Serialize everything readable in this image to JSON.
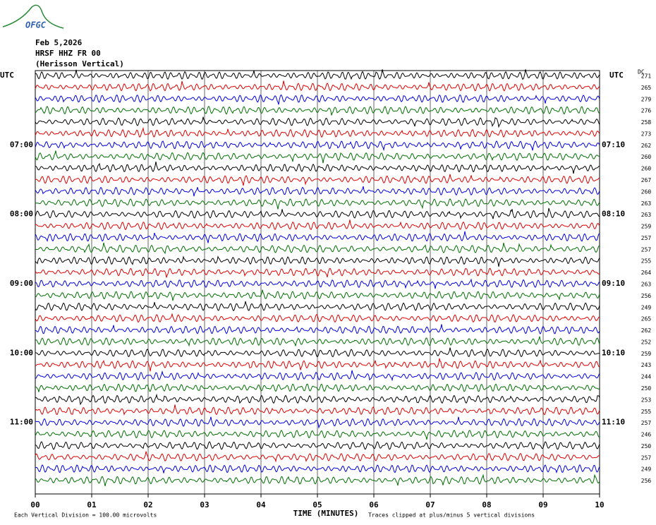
{
  "chart_data": {
    "type": "helicorder",
    "logo": "OFGC",
    "header": [
      "Feb 5,2026",
      "HRSF HHZ FR 00",
      "(Herisson Vertical)"
    ],
    "left_unit": "UTC",
    "right_unit": "UTC",
    "dc_label": "DC",
    "xlabel": "TIME (MINUTES)",
    "xlim": [
      0,
      10
    ],
    "xticks": [
      {
        "value": 0,
        "label": "00"
      },
      {
        "value": 1,
        "label": "01"
      },
      {
        "value": 2,
        "label": "02"
      },
      {
        "value": 3,
        "label": "03"
      },
      {
        "value": 4,
        "label": "04"
      },
      {
        "value": 5,
        "label": "05"
      },
      {
        "value": 6,
        "label": "06"
      },
      {
        "value": 7,
        "label": "07"
      },
      {
        "value": 8,
        "label": "08"
      },
      {
        "value": 9,
        "label": "09"
      },
      {
        "value": 10,
        "label": "10"
      }
    ],
    "footer_left": "Each Vertical Division =  100.00 microvolts",
    "footer_right": "Traces clipped at plus/minus 5 vertical divisions",
    "trace_colors": [
      "#000000",
      "#e00000",
      "#0000e0",
      "#007000"
    ],
    "traces": [
      {
        "dc": 271
      },
      {
        "dc": 265
      },
      {
        "dc": 279
      },
      {
        "dc": 276
      },
      {
        "dc": 258
      },
      {
        "dc": 273
      },
      {
        "dc": 262,
        "left": "07:00",
        "right": "07:10"
      },
      {
        "dc": 260
      },
      {
        "dc": 260
      },
      {
        "dc": 267
      },
      {
        "dc": 260
      },
      {
        "dc": 263
      },
      {
        "dc": 263,
        "left": "08:00",
        "right": "08:10"
      },
      {
        "dc": 259
      },
      {
        "dc": 257
      },
      {
        "dc": 257
      },
      {
        "dc": 255
      },
      {
        "dc": 264
      },
      {
        "dc": 263,
        "left": "09:00",
        "right": "09:10"
      },
      {
        "dc": 256
      },
      {
        "dc": 249
      },
      {
        "dc": 265
      },
      {
        "dc": 262
      },
      {
        "dc": 252
      },
      {
        "dc": 259,
        "left": "10:00",
        "right": "10:10"
      },
      {
        "dc": 243
      },
      {
        "dc": 244
      },
      {
        "dc": 250
      },
      {
        "dc": 253
      },
      {
        "dc": 255
      },
      {
        "dc": 257,
        "left": "11:00",
        "right": "11:10"
      },
      {
        "dc": 246
      },
      {
        "dc": 250
      },
      {
        "dc": 257
      },
      {
        "dc": 249
      },
      {
        "dc": 256
      }
    ]
  }
}
